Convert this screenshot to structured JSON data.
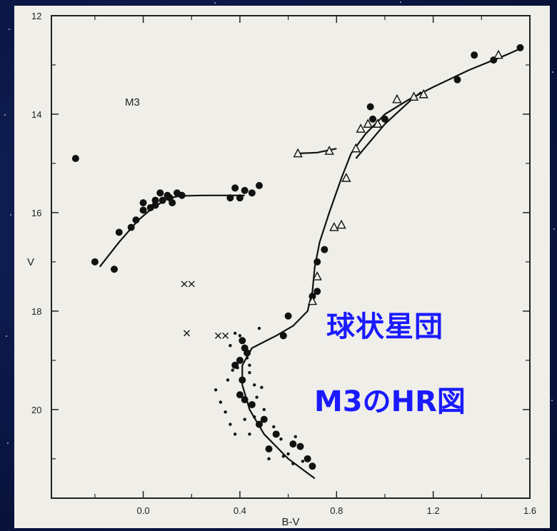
{
  "overlay": {
    "line1": "球状星団",
    "line2": "M3のHR図",
    "color": "#1a1aff"
  },
  "chart_data": {
    "type": "scatter",
    "title": "",
    "cluster_label": "M3",
    "xlabel": "B-V",
    "ylabel": "V",
    "xlim": [
      -0.38,
      1.6
    ],
    "ylim": [
      12.0,
      21.8
    ],
    "y_inverted": true,
    "x_ticks": [
      0.0,
      0.4,
      0.8,
      1.2,
      1.6
    ],
    "x_tick_labels": [
      "0.0",
      "0.4",
      "0.8",
      "1.2",
      "1.6"
    ],
    "y_ticks": [
      12,
      14,
      16,
      18,
      20
    ],
    "y_tick_labels": [
      "12",
      "14",
      "16",
      "18",
      "20"
    ],
    "grid": false,
    "series": [
      {
        "marker": "dot-large",
        "points": [
          [
            -0.28,
            14.9
          ],
          [
            -0.2,
            17.0
          ],
          [
            -0.12,
            17.15
          ],
          [
            -0.1,
            16.4
          ],
          [
            -0.05,
            16.3
          ],
          [
            -0.03,
            16.15
          ],
          [
            0.0,
            15.95
          ],
          [
            0.0,
            15.8
          ],
          [
            0.03,
            15.9
          ],
          [
            0.05,
            15.85
          ],
          [
            0.08,
            15.75
          ],
          [
            0.1,
            15.65
          ],
          [
            0.07,
            15.6
          ],
          [
            0.11,
            15.7
          ],
          [
            0.14,
            15.6
          ],
          [
            0.16,
            15.65
          ],
          [
            0.05,
            15.75
          ],
          [
            0.12,
            15.8
          ],
          [
            0.38,
            15.5
          ],
          [
            0.42,
            15.55
          ],
          [
            0.48,
            15.45
          ],
          [
            0.36,
            15.7
          ],
          [
            0.4,
            15.7
          ],
          [
            0.45,
            15.6
          ],
          [
            0.42,
            19.8
          ],
          [
            0.45,
            19.9
          ],
          [
            0.48,
            20.3
          ],
          [
            0.55,
            20.5
          ],
          [
            0.62,
            20.7
          ],
          [
            0.65,
            20.75
          ],
          [
            0.68,
            21.0
          ],
          [
            0.7,
            21.15
          ],
          [
            0.5,
            20.2
          ],
          [
            0.52,
            20.8
          ],
          [
            0.4,
            19.0
          ],
          [
            0.41,
            19.4
          ],
          [
            0.4,
            19.7
          ],
          [
            0.41,
            18.6
          ],
          [
            0.42,
            18.75
          ],
          [
            0.58,
            18.5
          ],
          [
            0.6,
            18.1
          ],
          [
            0.7,
            17.7
          ],
          [
            0.72,
            17.6
          ],
          [
            0.72,
            17.0
          ],
          [
            0.75,
            16.75
          ],
          [
            0.95,
            14.1
          ],
          [
            0.94,
            13.85
          ],
          [
            1.0,
            14.1
          ],
          [
            1.37,
            12.8
          ],
          [
            1.3,
            13.3
          ],
          [
            1.45,
            12.9
          ],
          [
            1.56,
            12.65
          ],
          [
            0.43,
            18.85
          ],
          [
            0.38,
            19.1
          ]
        ]
      },
      {
        "marker": "dot-small",
        "points": [
          [
            0.3,
            19.6
          ],
          [
            0.32,
            19.85
          ],
          [
            0.34,
            20.05
          ],
          [
            0.36,
            20.3
          ],
          [
            0.38,
            20.5
          ],
          [
            0.39,
            19.15
          ],
          [
            0.44,
            19.25
          ],
          [
            0.46,
            19.5
          ],
          [
            0.47,
            19.75
          ],
          [
            0.5,
            20.0
          ],
          [
            0.44,
            20.5
          ],
          [
            0.46,
            20.15
          ],
          [
            0.54,
            20.35
          ],
          [
            0.57,
            20.6
          ],
          [
            0.6,
            20.9
          ],
          [
            0.63,
            20.55
          ],
          [
            0.66,
            21.05
          ],
          [
            0.4,
            18.5
          ],
          [
            0.48,
            18.35
          ],
          [
            0.44,
            19.1
          ],
          [
            0.35,
            19.4
          ],
          [
            0.37,
            19.2
          ],
          [
            0.42,
            20.2
          ],
          [
            0.52,
            21.0
          ],
          [
            0.36,
            18.7
          ],
          [
            0.38,
            18.45
          ],
          [
            0.43,
            18.95
          ],
          [
            0.49,
            19.55
          ],
          [
            0.58,
            20.95
          ],
          [
            0.62,
            21.1
          ]
        ]
      },
      {
        "marker": "triangle",
        "points": [
          [
            0.64,
            14.8
          ],
          [
            0.77,
            14.75
          ],
          [
            0.7,
            17.8
          ],
          [
            0.72,
            17.3
          ],
          [
            0.79,
            16.3
          ],
          [
            0.82,
            16.25
          ],
          [
            0.84,
            15.3
          ],
          [
            0.88,
            14.7
          ],
          [
            0.9,
            14.3
          ],
          [
            0.93,
            14.2
          ],
          [
            0.97,
            14.2
          ],
          [
            1.05,
            13.7
          ],
          [
            1.12,
            13.65
          ],
          [
            1.16,
            13.6
          ],
          [
            1.47,
            12.8
          ]
        ]
      },
      {
        "marker": "cross",
        "points": [
          [
            0.17,
            17.45
          ],
          [
            0.2,
            17.45
          ],
          [
            0.18,
            18.45
          ],
          [
            0.31,
            18.5
          ],
          [
            0.34,
            18.5
          ]
        ]
      }
    ],
    "fit_lines": [
      {
        "points": [
          [
            -0.18,
            17.1
          ],
          [
            -0.1,
            16.6
          ],
          [
            -0.02,
            16.15
          ],
          [
            0.04,
            15.9
          ],
          [
            0.1,
            15.72
          ],
          [
            0.15,
            15.66
          ],
          [
            0.25,
            15.65
          ],
          [
            0.35,
            15.65
          ],
          [
            0.42,
            15.65
          ]
        ]
      },
      {
        "points": [
          [
            0.71,
            21.4
          ],
          [
            0.6,
            21.0
          ],
          [
            0.5,
            20.5
          ],
          [
            0.44,
            20.0
          ],
          [
            0.41,
            19.5
          ],
          [
            0.41,
            19.1
          ],
          [
            0.45,
            18.75
          ],
          [
            0.55,
            18.5
          ],
          [
            0.62,
            18.3
          ],
          [
            0.68,
            18.0
          ],
          [
            0.7,
            17.6
          ],
          [
            0.71,
            17.1
          ],
          [
            0.73,
            16.6
          ],
          [
            0.77,
            16.0
          ],
          [
            0.82,
            15.3
          ],
          [
            0.86,
            14.8
          ],
          [
            0.92,
            14.4
          ],
          [
            1.0,
            14.0
          ],
          [
            1.1,
            13.7
          ],
          [
            1.2,
            13.45
          ],
          [
            1.35,
            13.1
          ],
          [
            1.5,
            12.8
          ],
          [
            1.57,
            12.65
          ]
        ]
      },
      {
        "points": [
          [
            0.63,
            14.8
          ],
          [
            0.72,
            14.78
          ],
          [
            0.8,
            14.7
          ]
        ]
      },
      {
        "points": [
          [
            0.88,
            14.9
          ],
          [
            1.0,
            14.2
          ],
          [
            1.1,
            13.75
          ],
          [
            1.15,
            13.55
          ]
        ]
      }
    ]
  }
}
